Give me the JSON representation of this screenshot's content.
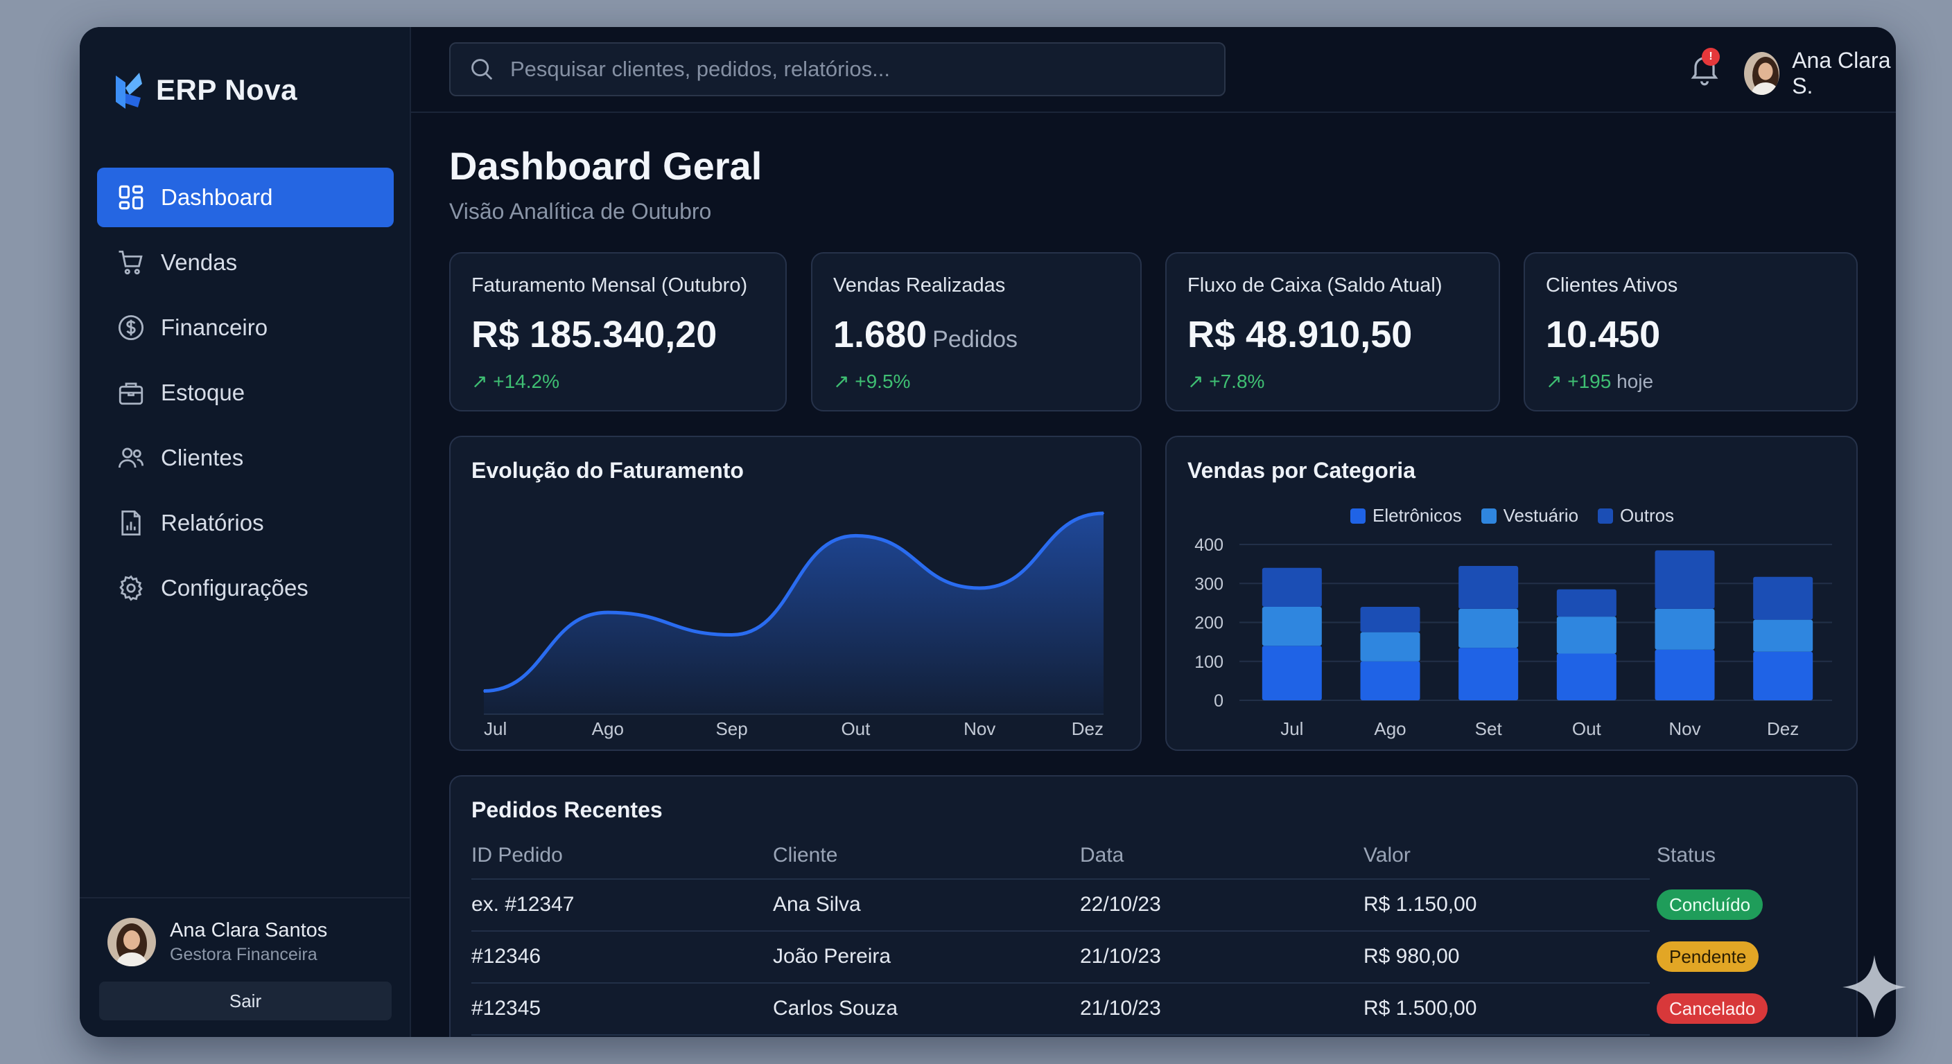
{
  "app": {
    "name": "ERP Nova",
    "accent": "#2566e2"
  },
  "sidebar": {
    "items": [
      {
        "label": "Dashboard",
        "icon": "grid-icon",
        "active": true
      },
      {
        "label": "Vendas",
        "icon": "cart-icon"
      },
      {
        "label": "Financeiro",
        "icon": "dollar-icon"
      },
      {
        "label": "Estoque",
        "icon": "box-icon"
      },
      {
        "label": "Clientes",
        "icon": "users-icon"
      },
      {
        "label": "Relatórios",
        "icon": "report-icon"
      },
      {
        "label": "Configurações",
        "icon": "gear-icon"
      }
    ],
    "user": {
      "name": "Ana Clara Santos",
      "role": "Gestora Financeira",
      "logout_label": "Sair"
    }
  },
  "header": {
    "search_placeholder": "Pesquisar clientes, pedidos, relatórios...",
    "notification_count": "!",
    "user_name": "Ana Clara S."
  },
  "page": {
    "title": "Dashboard Geral",
    "subtitle": "Visão Analítica de Outubro"
  },
  "kpis": [
    {
      "label": "Faturamento Mensal (Outubro)",
      "value": "R$ 185.340,20",
      "unit": "",
      "delta": "↗ +14.2%",
      "delta_note": ""
    },
    {
      "label": "Vendas Realizadas",
      "value": "1.680",
      "unit": "Pedidos",
      "delta": "↗ +9.5%",
      "delta_note": ""
    },
    {
      "label": "Fluxo de Caixa (Saldo Atual)",
      "value": "R$ 48.910,50",
      "unit": "",
      "delta": "↗ +7.8%",
      "delta_note": ""
    },
    {
      "label": "Clientes Ativos",
      "value": "10.450",
      "unit": "",
      "delta": "↗ +195",
      "delta_note": "hoje"
    }
  ],
  "chart_data": [
    {
      "type": "area",
      "title": "Evolução do Faturamento",
      "x": [
        "Jul",
        "Ago",
        "Sep",
        "Out",
        "Nov",
        "Dez"
      ],
      "values": [
        5,
        47,
        35,
        88,
        60,
        100
      ],
      "color": "#2a6cf0"
    },
    {
      "type": "bar",
      "stacked": true,
      "title": "Vendas por Categoria",
      "categories": [
        "Jul",
        "Ago",
        "Set",
        "Out",
        "Nov",
        "Dez"
      ],
      "series": [
        {
          "name": "Eletrônicos",
          "values": [
            140,
            100,
            135,
            120,
            130,
            125
          ],
          "color": "#1f63e6"
        },
        {
          "name": "Vestuário",
          "values": [
            100,
            75,
            100,
            95,
            105,
            82
          ],
          "color": "#2f86df"
        },
        {
          "name": "Outros",
          "values": [
            100,
            65,
            110,
            70,
            150,
            110
          ],
          "color": "#1b4eb5"
        }
      ],
      "yticks": [
        0,
        100,
        200,
        300,
        400
      ],
      "ylim": [
        0,
        400
      ],
      "legend": "top",
      "grid": true
    }
  ],
  "orders": {
    "title": "Pedidos Recentes",
    "columns": [
      "ID Pedido",
      "Cliente",
      "Data",
      "Valor",
      "Status"
    ],
    "rows": [
      {
        "id": "ex. #12347",
        "client": "Ana Silva",
        "date": "22/10/23",
        "value": "R$ 1.150,00",
        "status": "Concluído",
        "status_color": "#1f9d5a"
      },
      {
        "id": "#12346",
        "client": "João Pereira",
        "date": "21/10/23",
        "value": "R$ 980,00",
        "status": "Pendente",
        "status_color": "#e2a625"
      },
      {
        "id": "#12345",
        "client": "Carlos Souza",
        "date": "21/10/23",
        "value": "R$ 1.500,00",
        "status": "Cancelado",
        "status_color": "#d8383a"
      }
    ]
  }
}
